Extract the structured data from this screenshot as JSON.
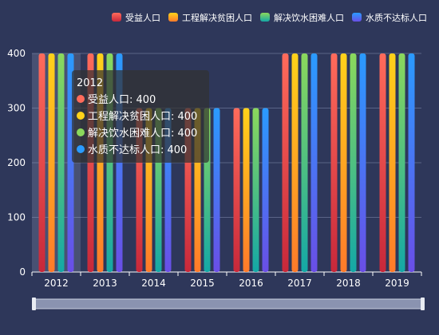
{
  "chart_data": {
    "type": "bar",
    "categories": [
      "2012",
      "2013",
      "2014",
      "2015",
      "2016",
      "2017",
      "2018",
      "2019"
    ],
    "series": [
      {
        "name": "受益人口",
        "values": [
          400,
          400,
          300,
          300,
          300,
          400,
          400,
          400
        ],
        "color_top": "#ff6b5b",
        "color_bottom": "#c8283a"
      },
      {
        "name": "工程解决贫困人口",
        "values": [
          400,
          400,
          300,
          300,
          300,
          400,
          400,
          400
        ],
        "color_top": "#ffd21a",
        "color_bottom": "#ff7a2a"
      },
      {
        "name": "解决饮水困难人口",
        "values": [
          400,
          400,
          300,
          300,
          300,
          400,
          400,
          400
        ],
        "color_top": "#8bd85c",
        "color_bottom": "#14a8a6"
      },
      {
        "name": "水质不达标人口",
        "values": [
          400,
          400,
          300,
          300,
          300,
          400,
          400,
          400
        ],
        "color_top": "#2a9bff",
        "color_bottom": "#6a4ee6"
      }
    ],
    "ylim": [
      0,
      400
    ],
    "yticks": [
      0,
      100,
      200,
      300,
      400
    ],
    "grid": true,
    "legend_position": "top-right",
    "xlabel": "",
    "ylabel": "",
    "title": ""
  },
  "tooltip": {
    "title": "2012",
    "rows": [
      {
        "label": "受益人口: 400",
        "color": "#ff6b5b"
      },
      {
        "label": "工程解决贫困人口: 400",
        "color": "#ffd21a"
      },
      {
        "label": "解决饮水困难人口: 400",
        "color": "#8bd85c"
      },
      {
        "label": "水质不达标人口: 400",
        "color": "#2a9bff"
      }
    ]
  },
  "colors": {
    "background": "#2e375a",
    "text": "#ffffff",
    "grid": "#5a6487",
    "axis": "#ffffff"
  }
}
